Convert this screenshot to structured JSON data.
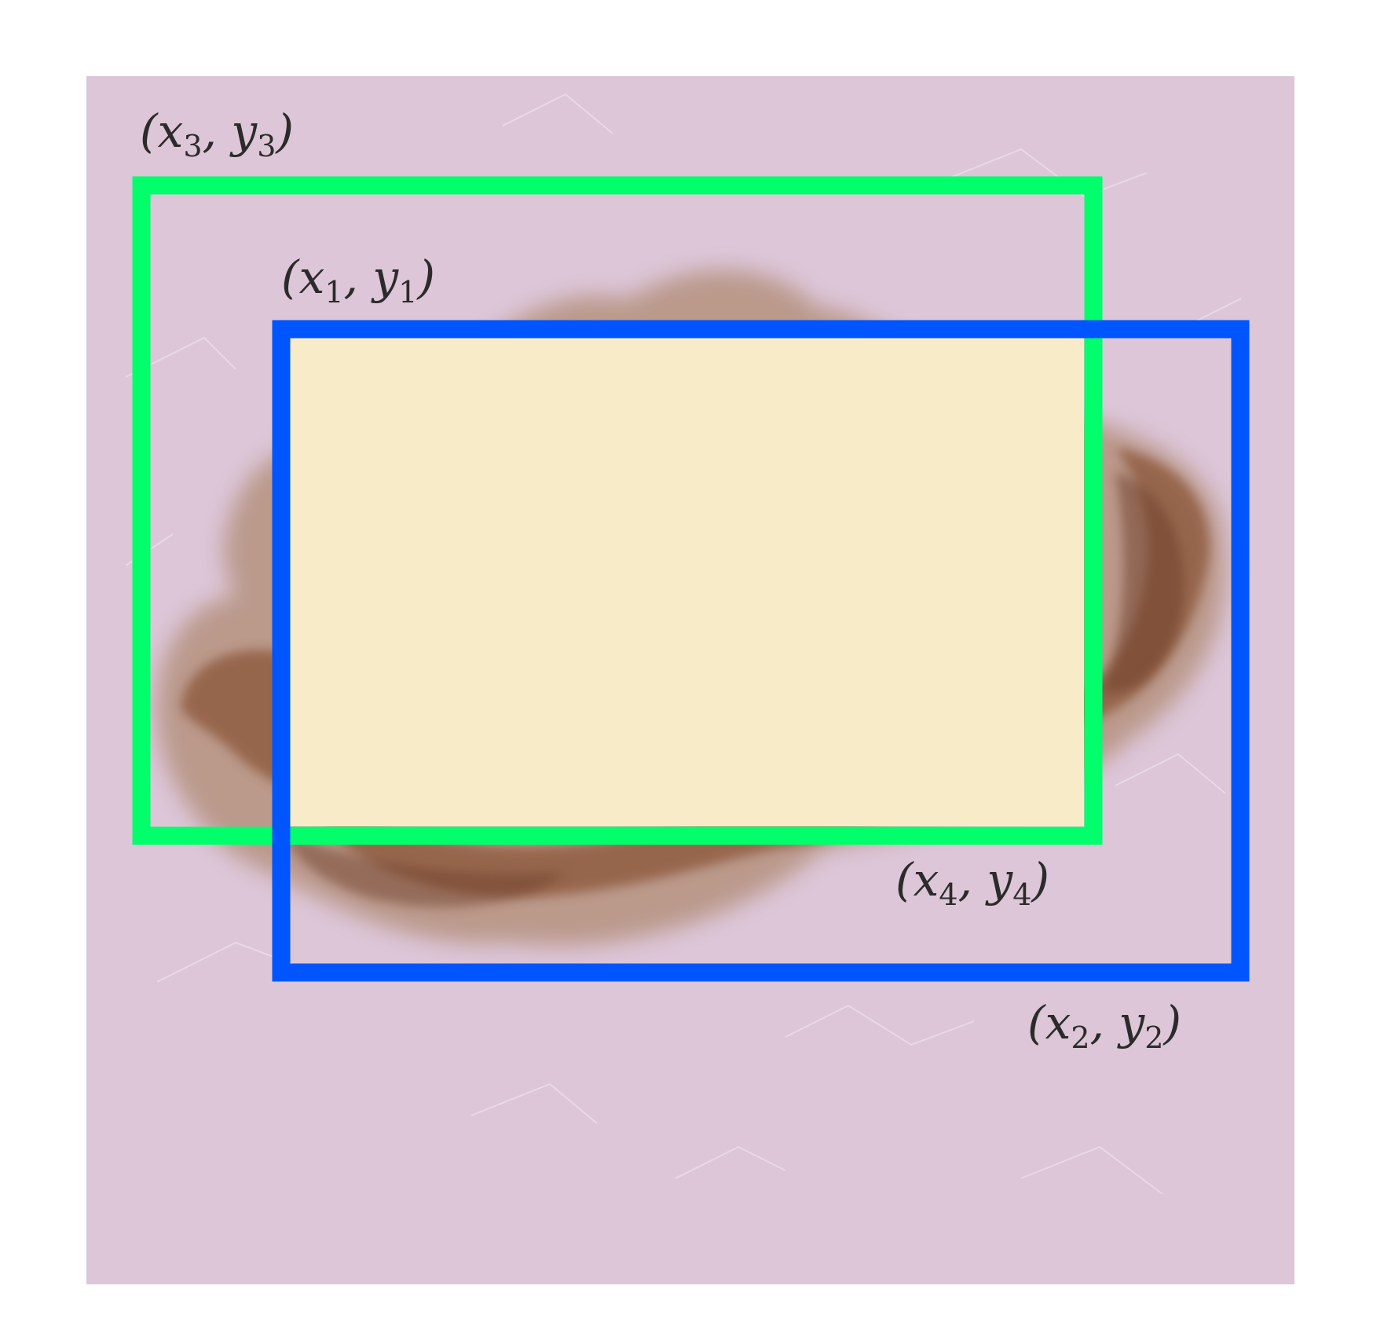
{
  "diagram": {
    "background": "dermoscopy image of a pigmented skin lesion",
    "colors": {
      "skin": "#d9c2d4",
      "lesion_light": "#a8794f",
      "lesion_dark": "#6f3f2a",
      "intersection_fill": "#f8ebc8",
      "box_a_stroke": "#00ff6a",
      "box_b_stroke": "#0055ff",
      "label_text": "#2b2b2b"
    },
    "box_b": {
      "name": "blue box",
      "top_left": {
        "x": "x",
        "xs": "1",
        "y": "y",
        "ys": "1"
      },
      "bottom_right": {
        "x": "x",
        "xs": "2",
        "y": "y",
        "ys": "2"
      }
    },
    "box_a": {
      "name": "green box",
      "top_left": {
        "x": "x",
        "xs": "3",
        "y": "y",
        "ys": "3"
      },
      "bottom_right": {
        "x": "x",
        "xs": "4",
        "y": "y",
        "ys": "4"
      }
    }
  }
}
